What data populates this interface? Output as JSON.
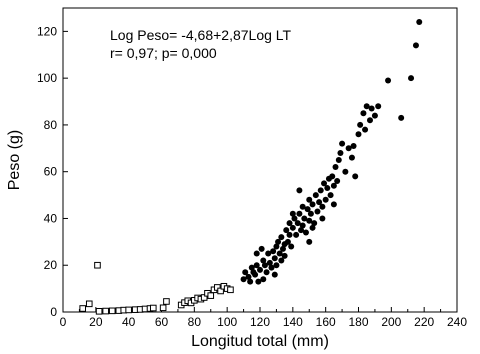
{
  "chart_data": {
    "type": "scatter",
    "title": "",
    "xlabel": "Longitud total (mm)",
    "ylabel": "Peso (g)",
    "xlim": [
      0,
      240
    ],
    "ylim": [
      0,
      130
    ],
    "x_ticks": [
      0,
      10,
      20,
      30,
      40,
      50,
      60,
      70,
      80,
      90,
      100,
      110,
      120,
      130,
      140,
      150,
      160,
      170,
      180,
      190,
      200,
      210,
      220,
      230,
      240
    ],
    "x_tick_labels": [
      "0",
      "20",
      "40",
      "60",
      "80",
      "100",
      "120",
      "140",
      "160",
      "180",
      "200",
      "220",
      "240"
    ],
    "y_ticks": [
      0,
      20,
      40,
      60,
      80,
      100,
      120
    ],
    "y_tick_labels": [
      "0",
      "20",
      "40",
      "60",
      "80",
      "100",
      "120"
    ],
    "grid": false,
    "annotations": [
      "Log Peso= -4,68+2,87Log LT",
      "r= 0,97; p= 0,000"
    ],
    "series": [
      {
        "marker": "open-square",
        "points": [
          [
            12,
            1.5
          ],
          [
            16,
            3.5
          ],
          [
            21,
            20
          ],
          [
            22,
            0.3
          ],
          [
            26,
            0.4
          ],
          [
            30,
            0.5
          ],
          [
            34,
            0.6
          ],
          [
            37,
            0.8
          ],
          [
            40,
            0.9
          ],
          [
            44,
            1.0
          ],
          [
            47,
            1.1
          ],
          [
            50,
            1.3
          ],
          [
            53,
            1.5
          ],
          [
            55,
            1.7
          ],
          [
            61,
            1.8
          ],
          [
            63,
            4.5
          ],
          [
            72,
            3.0
          ],
          [
            74,
            4.0
          ],
          [
            76,
            4.8
          ],
          [
            78,
            3.9
          ],
          [
            80,
            5.0
          ],
          [
            82,
            6.0
          ],
          [
            84,
            5.5
          ],
          [
            86,
            6.2
          ],
          [
            88,
            8.0
          ],
          [
            90,
            7.0
          ],
          [
            92,
            9.5
          ],
          [
            94,
            10.5
          ],
          [
            96,
            9.0
          ],
          [
            98,
            11.0
          ],
          [
            100,
            10.0
          ],
          [
            102,
            9.5
          ]
        ]
      },
      {
        "marker": "filled-circle",
        "points": [
          [
            110,
            14
          ],
          [
            111,
            17
          ],
          [
            113,
            15
          ],
          [
            114,
            13
          ],
          [
            115,
            19
          ],
          [
            116,
            17
          ],
          [
            117,
            16
          ],
          [
            118,
            20
          ],
          [
            119,
            13
          ],
          [
            120,
            18
          ],
          [
            121,
            27
          ],
          [
            122,
            22
          ],
          [
            123,
            20
          ],
          [
            124,
            17
          ],
          [
            125,
            25
          ],
          [
            126,
            21
          ],
          [
            127,
            19
          ],
          [
            128,
            26
          ],
          [
            129,
            23
          ],
          [
            130,
            28
          ],
          [
            130,
            20
          ],
          [
            131,
            30
          ],
          [
            132,
            25
          ],
          [
            133,
            32
          ],
          [
            134,
            27
          ],
          [
            135,
            29
          ],
          [
            136,
            35
          ],
          [
            137,
            30
          ],
          [
            138,
            38
          ],
          [
            138,
            33
          ],
          [
            139,
            28
          ],
          [
            140,
            36
          ],
          [
            141,
            40
          ],
          [
            142,
            33
          ],
          [
            143,
            38
          ],
          [
            144,
            42
          ],
          [
            145,
            35
          ],
          [
            146,
            45
          ],
          [
            146,
            37
          ],
          [
            147,
            40
          ],
          [
            148,
            34
          ],
          [
            149,
            44
          ],
          [
            150,
            39
          ],
          [
            150,
            48
          ],
          [
            151,
            42
          ],
          [
            152,
            46
          ],
          [
            153,
            38
          ],
          [
            154,
            50
          ],
          [
            155,
            43
          ],
          [
            156,
            47
          ],
          [
            157,
            52
          ],
          [
            158,
            45
          ],
          [
            159,
            55
          ],
          [
            160,
            48
          ],
          [
            161,
            53
          ],
          [
            162,
            57
          ],
          [
            163,
            50
          ],
          [
            164,
            58
          ],
          [
            165,
            54
          ],
          [
            166,
            62
          ],
          [
            167,
            56
          ],
          [
            168,
            65
          ],
          [
            169,
            68
          ],
          [
            170,
            72
          ],
          [
            172,
            60
          ],
          [
            174,
            70
          ],
          [
            176,
            66
          ],
          [
            177,
            71
          ],
          [
            178,
            58
          ],
          [
            180,
            76
          ],
          [
            181,
            80
          ],
          [
            183,
            85
          ],
          [
            184,
            78
          ],
          [
            185,
            88
          ],
          [
            187,
            82
          ],
          [
            188,
            87
          ],
          [
            190,
            84
          ],
          [
            192,
            88
          ],
          [
            198,
            99
          ],
          [
            206,
            83
          ],
          [
            212,
            100
          ],
          [
            215,
            114
          ],
          [
            217,
            124
          ],
          [
            144,
            52
          ],
          [
            135,
            24
          ],
          [
            133,
            22
          ],
          [
            152,
            36
          ],
          [
            158,
            40
          ],
          [
            165,
            46
          ],
          [
            129,
            16
          ],
          [
            118,
            25
          ],
          [
            122,
            14
          ],
          [
            140,
            42
          ],
          [
            150,
            30
          ]
        ]
      }
    ]
  }
}
